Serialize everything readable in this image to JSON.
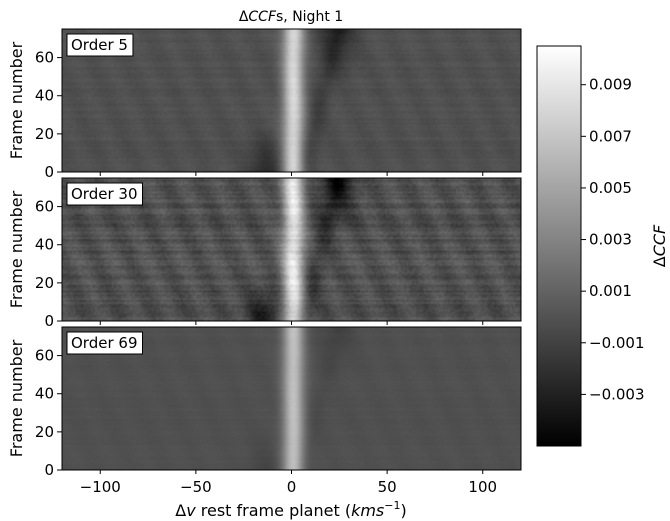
{
  "chart_data": {
    "type": "heatmap",
    "title_prefix": "Δ",
    "title_italic": "CCF",
    "title_suffix": "s, Night 1",
    "xlabel_prefix": "Δ",
    "xlabel_italic": "v",
    "xlabel_middle": " rest frame planet (",
    "xlabel_unit": "kms",
    "xlabel_exp": "−1",
    "xlabel_end": ")",
    "xlim": [
      -120,
      120
    ],
    "xticks": [
      -100,
      -50,
      0,
      50,
      100
    ],
    "xtick_labels": [
      "−100",
      "−50",
      "0",
      "50",
      "100"
    ],
    "ylabel": "Frame number",
    "ylim": [
      0,
      75
    ],
    "yticks": [
      0,
      20,
      40,
      60
    ],
    "ytick_labels": [
      "0",
      "20",
      "40",
      "60"
    ],
    "panels": [
      {
        "label": "Order 5",
        "noise": 0.35,
        "streak": 0.9,
        "dark": 0.7
      },
      {
        "label": "Order 30",
        "noise": 1.0,
        "streak": 1.0,
        "dark": 1.0
      },
      {
        "label": "Order 69",
        "noise": 0.15,
        "streak": 0.75,
        "dark": 0.2
      }
    ],
    "colorbar": {
      "label_prefix": "Δ",
      "label_italic": "CCF",
      "range": [
        -0.005,
        0.0105
      ],
      "ticks": [
        0.009,
        0.007,
        0.005,
        0.003,
        0.001,
        -0.001,
        -0.003
      ],
      "tick_labels": [
        "0.009",
        "0.007",
        "0.005",
        "0.003",
        "0.001",
        "−0.001",
        "−0.003"
      ],
      "colormap": "gray"
    }
  }
}
